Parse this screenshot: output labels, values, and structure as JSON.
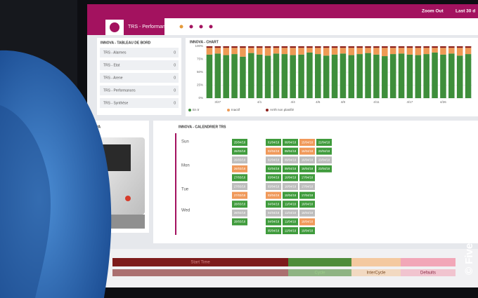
{
  "header": {
    "title": "TRS - Performances",
    "zoom": "Zoom Out",
    "range": "Last 30 d"
  },
  "dashboard": {
    "title": "INNOVA - TABLEAU DE BORD",
    "items": [
      {
        "label": "TRS - Alarmes",
        "count": 0
      },
      {
        "label": "TRS - Etat",
        "count": 0
      },
      {
        "label": "TRS - Arene",
        "count": 0
      },
      {
        "label": "TRS - Performances",
        "count": 0
      },
      {
        "label": "TRS - Synthèse",
        "count": 0
      }
    ]
  },
  "chart_data": {
    "type": "stacked-bar",
    "title": "INNOVA - CHART",
    "categories": [
      null,
      "3/27",
      null,
      null,
      null,
      null,
      "4/1",
      null,
      null,
      null,
      "4/4",
      null,
      null,
      "4/6",
      null,
      null,
      "4/8",
      null,
      null,
      null,
      "4/11",
      null,
      null,
      null,
      "4/17",
      null,
      null,
      null,
      "4/26",
      null,
      null,
      null
    ],
    "series": [
      {
        "name": "En tr",
        "color": "#3e8e3b",
        "values": [
          84,
          86,
          83,
          85,
          80,
          87,
          84,
          82,
          86,
          85,
          83,
          84,
          88,
          85,
          82,
          84,
          86,
          83,
          85,
          87,
          84,
          81,
          85,
          86,
          84,
          83,
          85,
          88,
          84,
          86,
          82,
          85
        ]
      },
      {
        "name": "Inactif",
        "color": "#ee9a55",
        "values": [
          13,
          11,
          14,
          12,
          17,
          10,
          13,
          15,
          11,
          12,
          14,
          13,
          9,
          12,
          15,
          13,
          11,
          14,
          12,
          10,
          13,
          16,
          12,
          11,
          13,
          14,
          12,
          9,
          13,
          11,
          15,
          12
        ]
      },
      {
        "name": "Arrêt non planifié",
        "color": "#8c1f1a",
        "values": [
          3,
          3,
          3,
          3,
          3,
          3,
          3,
          3,
          3,
          3,
          3,
          3,
          3,
          3,
          3,
          3,
          3,
          3,
          3,
          3,
          3,
          3,
          3,
          3,
          3,
          3,
          3,
          3,
          3,
          3,
          3,
          3
        ]
      }
    ],
    "ylim": [
      0,
      100
    ],
    "yticks": [
      {
        "value": 0,
        "label": "0%"
      },
      {
        "value": 25,
        "label": "25%"
      },
      {
        "value": 50,
        "label": "50%"
      },
      {
        "value": 75,
        "label": "75%"
      },
      {
        "value": 100,
        "label": "100%"
      }
    ],
    "grid": true
  },
  "machine": {
    "title": "INNOVA"
  },
  "calendar": {
    "title": "INNOVA - CALENDRIER TRS",
    "days": [
      "Sun",
      "Mon",
      "Tue",
      "Wed"
    ],
    "rows": [
      [
        {
          "label": "25/04/18",
          "color": "#3f9b3c"
        },
        null,
        {
          "label": "01/04/18",
          "color": "#3f9b3c"
        },
        {
          "label": "08/04/18",
          "color": "#3f9b3c"
        },
        {
          "label": "15/04/18",
          "color": "#f0995a"
        },
        {
          "label": "22/04/18",
          "color": "#3f9b3c"
        }
      ],
      [
        {
          "label": "26/03/18",
          "color": "#3f9b3c"
        },
        null,
        {
          "label": "02/04/18",
          "color": "#f0995a"
        },
        {
          "label": "09/04/18",
          "color": "#3f9b3c"
        },
        {
          "label": "16/04/18",
          "color": "#f0995a"
        },
        {
          "label": "23/04/18",
          "color": "#3f9b3c"
        }
      ],
      [
        {
          "label": "26/03/18",
          "color": "#bdbdbd"
        },
        null,
        {
          "label": "02/04/18",
          "color": "#bdbdbd"
        },
        {
          "label": "09/04/18",
          "color": "#bdbdbd"
        },
        {
          "label": "16/04/18",
          "color": "#bdbdbd"
        },
        {
          "label": "23/04/18",
          "color": "#bdbdbd"
        }
      ],
      [
        {
          "label": "26/03/18",
          "color": "#f0995a"
        },
        null,
        {
          "label": "02/04/18",
          "color": "#3f9b3c"
        },
        {
          "label": "09/04/18",
          "color": "#3f9b3c"
        },
        {
          "label": "16/04/18",
          "color": "#3f9b3c"
        },
        {
          "label": "23/04/18",
          "color": "#3f9b3c"
        }
      ],
      [
        {
          "label": "27/03/18",
          "color": "#3f9b3c"
        },
        null,
        {
          "label": "03/04/18",
          "color": "#3f9b3c"
        },
        {
          "label": "10/04/18",
          "color": "#3f9b3c"
        },
        {
          "label": "17/04/18",
          "color": "#3f9b3c"
        },
        null
      ],
      [
        {
          "label": "27/03/18",
          "color": "#bdbdbd"
        },
        null,
        {
          "label": "03/04/18",
          "color": "#bdbdbd"
        },
        {
          "label": "10/04/18",
          "color": "#bdbdbd"
        },
        {
          "label": "17/04/18",
          "color": "#bdbdbd"
        },
        null
      ],
      [
        {
          "label": "27/03/18",
          "color": "#f0995a"
        },
        null,
        {
          "label": "03/04/18",
          "color": "#f0995a"
        },
        {
          "label": "10/04/18",
          "color": "#3f9b3c"
        },
        {
          "label": "17/04/18",
          "color": "#3f9b3c"
        },
        null
      ],
      [
        {
          "label": "28/03/18",
          "color": "#3f9b3c"
        },
        null,
        {
          "label": "04/04/18",
          "color": "#3f9b3c"
        },
        {
          "label": "11/04/18",
          "color": "#3f9b3c"
        },
        {
          "label": "18/04/18",
          "color": "#3f9b3c"
        },
        null
      ],
      [
        {
          "label": "28/03/18",
          "color": "#bdbdbd"
        },
        null,
        {
          "label": "04/04/18",
          "color": "#bdbdbd"
        },
        {
          "label": "11/04/18",
          "color": "#bdbdbd"
        },
        {
          "label": "18/04/18",
          "color": "#bdbdbd"
        },
        null
      ],
      [
        {
          "label": "28/03/18",
          "color": "#3f9b3c"
        },
        null,
        {
          "label": "04/04/18",
          "color": "#3f9b3c"
        },
        {
          "label": "11/04/18",
          "color": "#3f9b3c"
        },
        {
          "label": "18/04/18",
          "color": "#f0995a"
        },
        null
      ],
      [
        null,
        null,
        {
          "label": "05/04/18",
          "color": "#3f9b3c"
        },
        {
          "label": "12/04/18",
          "color": "#3f9b3c"
        },
        {
          "label": "19/04/18",
          "color": "#3f9b3c"
        },
        null
      ]
    ]
  },
  "timeline": {
    "labels": [
      "Start Time",
      "Cycle",
      "InterCycle",
      "Defaults"
    ]
  },
  "credit": "© Fives"
}
